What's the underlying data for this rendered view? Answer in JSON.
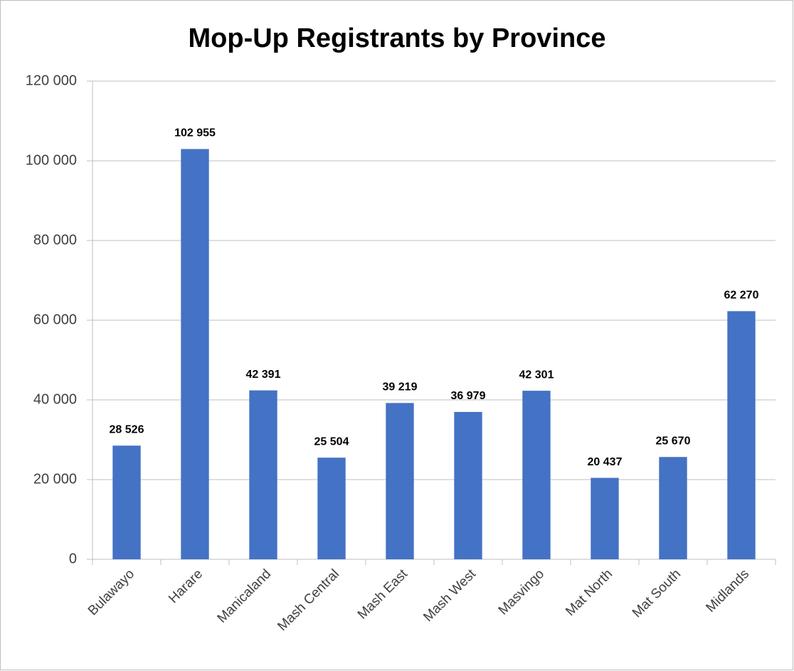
{
  "chart_data": {
    "type": "bar",
    "title": "Mop-Up Registrants by Province",
    "categories": [
      "Bulawayo",
      "Harare",
      "Manicaland",
      "Mash Central",
      "Mash East",
      "Mash West",
      "Masvingo",
      "Mat North",
      "Mat South",
      "Midlands"
    ],
    "values": [
      28526,
      102955,
      42391,
      25504,
      39219,
      36979,
      42301,
      20437,
      25670,
      62270
    ],
    "value_labels": [
      "28 526",
      "102 955",
      "42 391",
      "25 504",
      "39 219",
      "36 979",
      "42 301",
      "20 437",
      "25 670",
      "62 270"
    ],
    "color": "#4472c4",
    "ylim": [
      0,
      120000
    ],
    "yticks": [
      0,
      {
        "value": 20000,
        "label": "20 000"
      },
      {
        "value": 40000,
        "label": "40 000"
      },
      {
        "value": 60000,
        "label": "60 000"
      },
      {
        "value": 80000,
        "label": "80 000"
      },
      {
        "value": 100000,
        "label": "100 000"
      },
      {
        "value": 120000,
        "label": "120 000"
      }
    ],
    "grid": true
  }
}
